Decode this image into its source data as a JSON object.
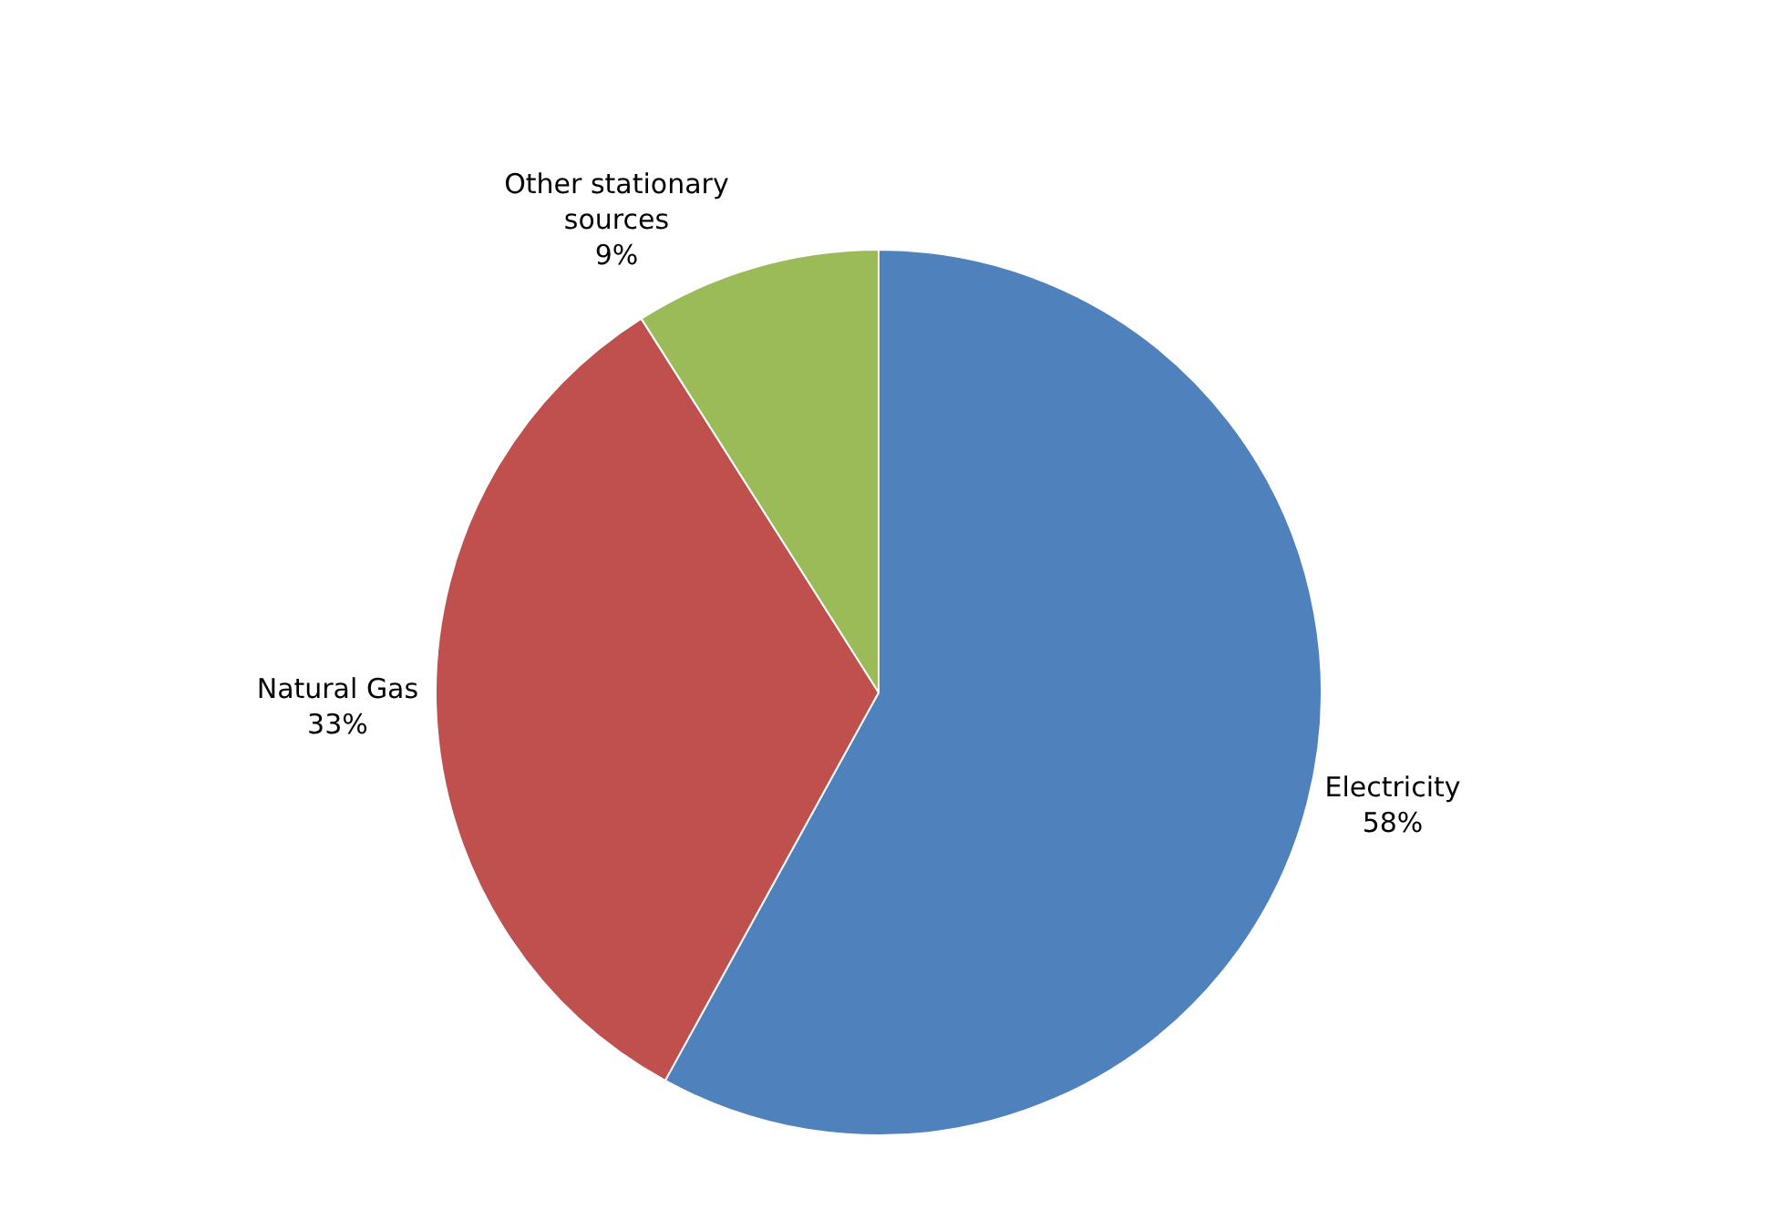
{
  "chart_data": {
    "type": "pie",
    "categories": [
      "Electricity",
      "Natural Gas",
      "Other stationary sources"
    ],
    "values": [
      58,
      33,
      9
    ],
    "colors": [
      "#4f81bd",
      "#c0504d",
      "#9bbb59"
    ],
    "value_labels": [
      "58%",
      "33%",
      "9%"
    ],
    "legend": false
  }
}
